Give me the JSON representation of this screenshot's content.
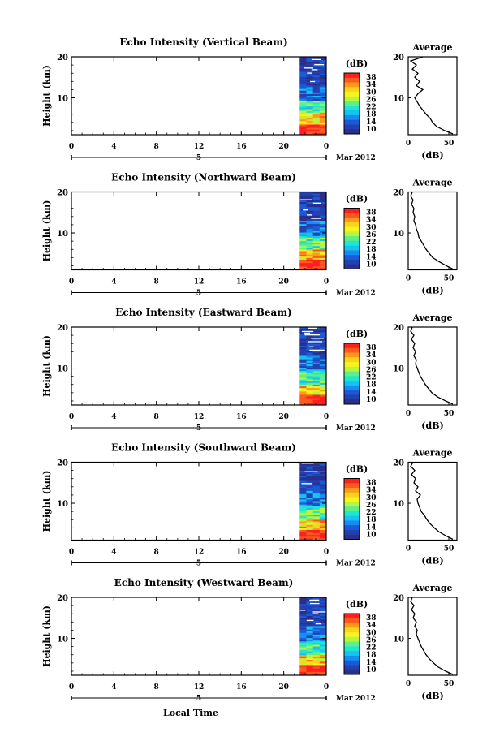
{
  "date_label": "Mar 2012",
  "time_axis_label": "Local Time",
  "day_marker": "5",
  "colorbar": {
    "unit_label": "(dB)",
    "ticks": [
      "38",
      "34",
      "30",
      "26",
      "22",
      "18",
      "14",
      "10"
    ],
    "colors": [
      "#ff1f1f",
      "#ff5a1e",
      "#ff9a1a",
      "#ffd21a",
      "#f4f51f",
      "#b8f53c",
      "#5cf08a",
      "#1fe6d2",
      "#16c2f0",
      "#168ef0",
      "#1a5ad8",
      "#2340b0",
      "#2a2f8a"
    ]
  },
  "chart_data": [
    {
      "type": "heatmap",
      "title": "Echo Intensity (Vertical Beam)",
      "ylabel": "Height (km)",
      "xlabel": "Local Time",
      "x_ticks": [
        "0",
        "4",
        "8",
        "12",
        "16",
        "20",
        "0"
      ],
      "xlim": [
        0,
        24
      ],
      "y_ticks": [
        "20",
        "10"
      ],
      "ylim": [
        1,
        20
      ],
      "color_range_db": [
        10,
        38
      ],
      "data_time_span_hours": [
        21.5,
        24
      ],
      "average_profile": {
        "title": "Average",
        "xlabel": "(dB)",
        "x_ticks": [
          "0",
          "50"
        ],
        "xlim": [
          0,
          60
        ],
        "y_ticks": [
          "20",
          "10"
        ],
        "ylim": [
          1,
          20
        ],
        "height_km": [
          1.2,
          2,
          3,
          4,
          5,
          6,
          7,
          8,
          9,
          10,
          11,
          12,
          13,
          14,
          15,
          16,
          17,
          18,
          19,
          20
        ],
        "db": [
          55,
          45,
          35,
          30,
          27,
          22,
          18,
          14,
          11,
          8,
          12,
          18,
          10,
          14,
          8,
          12,
          5,
          10,
          3,
          18
        ]
      }
    },
    {
      "type": "heatmap",
      "title": "Echo Intensity (Northward Beam)",
      "ylabel": "Height (km)",
      "xlabel": "Local Time",
      "x_ticks": [
        "0",
        "4",
        "8",
        "12",
        "16",
        "20",
        "0"
      ],
      "xlim": [
        0,
        24
      ],
      "y_ticks": [
        "20",
        "10"
      ],
      "ylim": [
        1,
        20
      ],
      "color_range_db": [
        10,
        38
      ],
      "data_time_span_hours": [
        21.5,
        24
      ],
      "average_profile": {
        "title": "Average",
        "xlabel": "(dB)",
        "x_ticks": [
          "0",
          "50"
        ],
        "xlim": [
          0,
          60
        ],
        "y_ticks": [
          "20",
          "10"
        ],
        "ylim": [
          1,
          20
        ],
        "height_km": [
          1.2,
          2,
          3,
          4,
          5,
          6,
          7,
          8,
          9,
          10,
          11,
          12,
          13,
          14,
          15,
          16,
          17,
          18,
          19,
          20
        ],
        "db": [
          55,
          47,
          38,
          30,
          26,
          22,
          19,
          16,
          13,
          12,
          10,
          9,
          7,
          8,
          6,
          7,
          4,
          6,
          3,
          5
        ]
      }
    },
    {
      "type": "heatmap",
      "title": "Echo Intensity (Eastward Beam)",
      "ylabel": "Height (km)",
      "xlabel": "Local Time",
      "x_ticks": [
        "0",
        "4",
        "8",
        "12",
        "16",
        "20",
        "0"
      ],
      "xlim": [
        0,
        24
      ],
      "y_ticks": [
        "20",
        "10"
      ],
      "ylim": [
        1,
        20
      ],
      "color_range_db": [
        10,
        38
      ],
      "data_time_span_hours": [
        21.5,
        24
      ],
      "average_profile": {
        "title": "Average",
        "xlabel": "(dB)",
        "x_ticks": [
          "0",
          "50"
        ],
        "xlim": [
          0,
          60
        ],
        "y_ticks": [
          "20",
          "10"
        ],
        "ylim": [
          1,
          20
        ],
        "height_km": [
          1.2,
          2,
          3,
          4,
          5,
          6,
          7,
          8,
          9,
          10,
          11,
          12,
          13,
          14,
          15,
          16,
          17,
          18,
          19,
          20
        ],
        "db": [
          55,
          46,
          36,
          29,
          25,
          21,
          18,
          15,
          13,
          11,
          9,
          10,
          7,
          9,
          6,
          8,
          4,
          7,
          3,
          5
        ]
      }
    },
    {
      "type": "heatmap",
      "title": "Echo Intensity (Southward Beam)",
      "ylabel": "Height (km)",
      "xlabel": "Local Time",
      "x_ticks": [
        "0",
        "4",
        "8",
        "12",
        "16",
        "20",
        "0"
      ],
      "xlim": [
        0,
        24
      ],
      "y_ticks": [
        "20",
        "10"
      ],
      "ylim": [
        1,
        20
      ],
      "color_range_db": [
        10,
        38
      ],
      "data_time_span_hours": [
        21.5,
        24
      ],
      "average_profile": {
        "title": "Average",
        "xlabel": "(dB)",
        "x_ticks": [
          "0",
          "50"
        ],
        "xlim": [
          0,
          60
        ],
        "y_ticks": [
          "20",
          "10"
        ],
        "ylim": [
          1,
          20
        ],
        "height_km": [
          1.2,
          2,
          3,
          4,
          5,
          6,
          7,
          8,
          9,
          10,
          11,
          12,
          13,
          14,
          15,
          16,
          17,
          18,
          19,
          20
        ],
        "db": [
          55,
          47,
          38,
          32,
          27,
          23,
          20,
          16,
          14,
          12,
          11,
          15,
          9,
          12,
          7,
          9,
          4,
          8,
          3,
          6
        ]
      }
    },
    {
      "type": "heatmap",
      "title": "Echo Intensity (Westward Beam)",
      "ylabel": "Height (km)",
      "xlabel": "Local Time",
      "x_ticks": [
        "0",
        "4",
        "8",
        "12",
        "16",
        "20",
        "0"
      ],
      "xlim": [
        0,
        24
      ],
      "y_ticks": [
        "20",
        "10"
      ],
      "ylim": [
        1,
        20
      ],
      "color_range_db": [
        10,
        38
      ],
      "data_time_span_hours": [
        21.5,
        24
      ],
      "average_profile": {
        "title": "Average",
        "xlabel": "(dB)",
        "x_ticks": [
          "0",
          "50"
        ],
        "xlim": [
          0,
          60
        ],
        "y_ticks": [
          "20",
          "10"
        ],
        "ylim": [
          1,
          20
        ],
        "height_km": [
          1.2,
          2,
          3,
          4,
          5,
          6,
          7,
          8,
          9,
          10,
          11,
          12,
          13,
          14,
          15,
          16,
          17,
          18,
          19,
          20
        ],
        "db": [
          55,
          46,
          37,
          31,
          26,
          22,
          19,
          16,
          14,
          12,
          10,
          11,
          8,
          10,
          6,
          8,
          4,
          7,
          3,
          5
        ]
      }
    }
  ]
}
